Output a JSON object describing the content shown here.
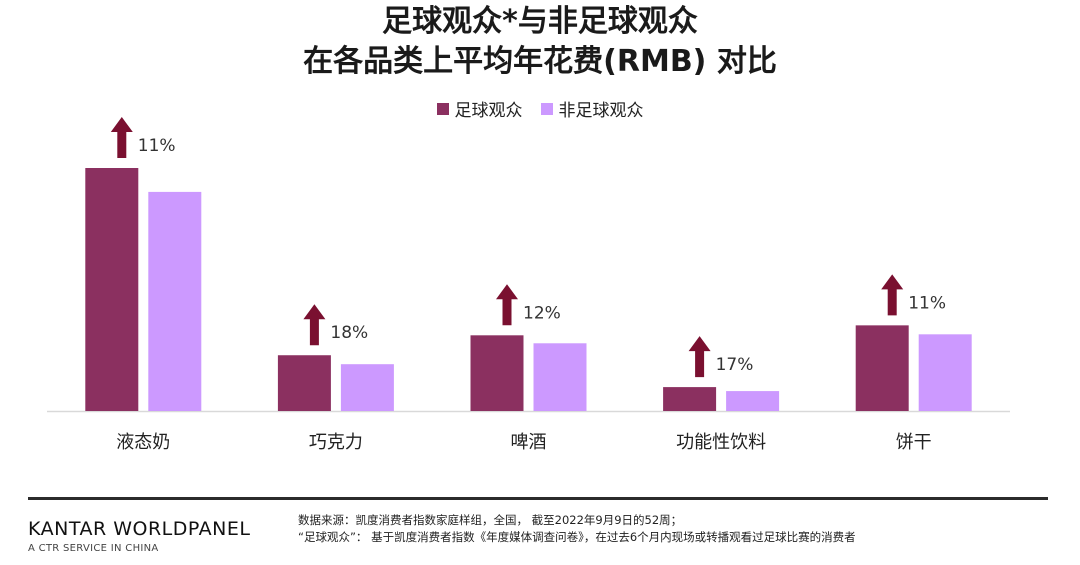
{
  "title_line1": "足球观众*与非足球观众",
  "title_line2": "在各品类上平均年花费(RMB) 对比",
  "colors": {
    "football": "#8b3060",
    "non_football": "#cc99ff",
    "arrow": "#7a1030"
  },
  "chart_data": {
    "type": "bar",
    "categories": [
      "液态奶",
      "巧克力",
      "啤酒",
      "功能性饮料",
      "饼干"
    ],
    "series": [
      {
        "name": "足球观众",
        "values": [
          244,
          56,
          76,
          24,
          86
        ]
      },
      {
        "name": "非足球观众",
        "values": [
          220,
          47,
          68,
          20,
          77
        ]
      }
    ],
    "uplift_labels": [
      "11%",
      "18%",
      "12%",
      "17%",
      "11%"
    ],
    "ylim": [
      0,
      260
    ],
    "grid": false,
    "legend": "top-center"
  },
  "footer": {
    "brand": "KANTAR WORLDPANEL",
    "tagline": "A CTR SERVICE IN CHINA",
    "source_line1": "数据来源：凯度消费者指数家庭样组，全国， 截至2022年9月9日的52周；",
    "source_line2": "“足球观众”： 基于凯度消费者指数《年度媒体调查问卷》，在过去6个月内现场或转播观看过足球比赛的消费者"
  }
}
